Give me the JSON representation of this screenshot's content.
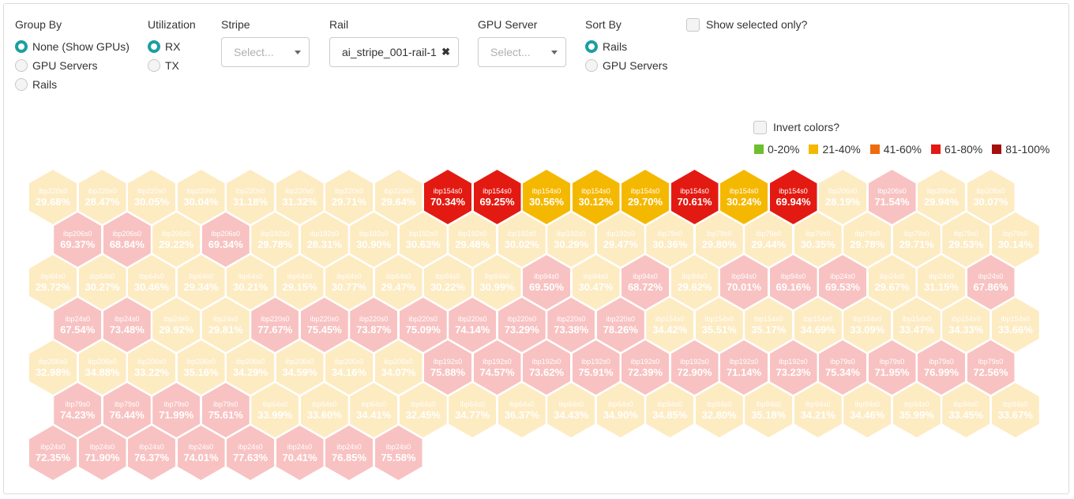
{
  "group_by": {
    "label": "Group By",
    "options": [
      {
        "label": "None (Show GPUs)",
        "selected": true
      },
      {
        "label": "GPU Servers",
        "selected": false
      },
      {
        "label": "Rails",
        "selected": false
      }
    ]
  },
  "utilization": {
    "label": "Utilization",
    "options": [
      {
        "label": "RX",
        "selected": true
      },
      {
        "label": "TX",
        "selected": false
      }
    ]
  },
  "stripe": {
    "label": "Stripe",
    "placeholder": "Select..."
  },
  "rail": {
    "label": "Rail",
    "value": "ai_stripe_001-rail-1",
    "clear_icon": "close-icon"
  },
  "gpu_server": {
    "label": "GPU Server",
    "placeholder": "Select..."
  },
  "sort_by": {
    "label": "Sort By",
    "options": [
      {
        "label": "Rails",
        "selected": true
      },
      {
        "label": "GPU Servers",
        "selected": false
      }
    ]
  },
  "show_selected_only": {
    "label": "Show selected only?",
    "checked": false
  },
  "invert_colors": {
    "label": "Invert colors?",
    "checked": false
  },
  "legend": [
    {
      "label": "0-20%",
      "color": "#6dbf2f"
    },
    {
      "label": "21-40%",
      "color": "#f5b800"
    },
    {
      "label": "41-60%",
      "color": "#ee6c0c"
    },
    {
      "label": "61-80%",
      "color": "#e31a12"
    },
    {
      "label": "81-100%",
      "color": "#a50f0f"
    }
  ],
  "colors": {
    "dim_low": "#fdebc2",
    "dim_high": "#f8c2c2",
    "hi_low": "#f5b800",
    "hi_high": "#e31a12"
  },
  "rows": [
    [
      {
        "name": "ibp220s0",
        "value": "29.68%",
        "hl": false
      },
      {
        "name": "ibp220s0",
        "value": "28.47%",
        "hl": false
      },
      {
        "name": "ibp220s0",
        "value": "30.05%",
        "hl": false
      },
      {
        "name": "ibp220s0",
        "value": "30.04%",
        "hl": false
      },
      {
        "name": "ibp220s0",
        "value": "31.18%",
        "hl": false
      },
      {
        "name": "ibp220s0",
        "value": "31.32%",
        "hl": false
      },
      {
        "name": "ibp220s0",
        "value": "29.71%",
        "hl": false
      },
      {
        "name": "ibp220s0",
        "value": "29.64%",
        "hl": false
      },
      {
        "name": "ibp154s0",
        "value": "70.34%",
        "hl": true
      },
      {
        "name": "ibp154s0",
        "value": "69.25%",
        "hl": true
      },
      {
        "name": "ibp154s0",
        "value": "30.56%",
        "hl": true
      },
      {
        "name": "ibp154s0",
        "value": "30.12%",
        "hl": true
      },
      {
        "name": "ibp154s0",
        "value": "29.70%",
        "hl": true
      },
      {
        "name": "ibp154s0",
        "value": "70.61%",
        "hl": true
      },
      {
        "name": "ibp154s0",
        "value": "30.24%",
        "hl": true
      },
      {
        "name": "ibp154s0",
        "value": "69.94%",
        "hl": true
      },
      {
        "name": "ibp206s0",
        "value": "28.19%",
        "hl": false
      },
      {
        "name": "ibp206s0",
        "value": "71.54%",
        "hl": false
      },
      {
        "name": "ibp206s0",
        "value": "29.94%",
        "hl": false
      },
      {
        "name": "ibp206s0",
        "value": "30.07%",
        "hl": false
      }
    ],
    [
      {
        "name": "ibp206s0",
        "value": "69.37%",
        "hl": false
      },
      {
        "name": "ibp206s0",
        "value": "68.84%",
        "hl": false
      },
      {
        "name": "ibp206s0",
        "value": "29.22%",
        "hl": false
      },
      {
        "name": "ibp206s0",
        "value": "69.34%",
        "hl": false
      },
      {
        "name": "ibp192s0",
        "value": "29.78%",
        "hl": false
      },
      {
        "name": "ibp192s0",
        "value": "28.31%",
        "hl": false
      },
      {
        "name": "ibp192s0",
        "value": "30.90%",
        "hl": false
      },
      {
        "name": "ibp192s0",
        "value": "30.63%",
        "hl": false
      },
      {
        "name": "ibp192s0",
        "value": "29.48%",
        "hl": false
      },
      {
        "name": "ibp192s0",
        "value": "30.02%",
        "hl": false
      },
      {
        "name": "ibp192s0",
        "value": "30.29%",
        "hl": false
      },
      {
        "name": "ibp192s0",
        "value": "29.47%",
        "hl": false
      },
      {
        "name": "ibp79s0",
        "value": "30.36%",
        "hl": false
      },
      {
        "name": "ibp79s0",
        "value": "29.80%",
        "hl": false
      },
      {
        "name": "ibp79s0",
        "value": "29.44%",
        "hl": false
      },
      {
        "name": "ibp79s0",
        "value": "30.35%",
        "hl": false
      },
      {
        "name": "ibp79s0",
        "value": "29.78%",
        "hl": false
      },
      {
        "name": "ibp79s0",
        "value": "29.71%",
        "hl": false
      },
      {
        "name": "ibp79s0",
        "value": "29.53%",
        "hl": false
      },
      {
        "name": "ibp79s0",
        "value": "30.14%",
        "hl": false
      }
    ],
    [
      {
        "name": "ibp64s0",
        "value": "29.72%",
        "hl": false
      },
      {
        "name": "ibp64s0",
        "value": "30.27%",
        "hl": false
      },
      {
        "name": "ibp64s0",
        "value": "30.46%",
        "hl": false
      },
      {
        "name": "ibp64s0",
        "value": "29.34%",
        "hl": false
      },
      {
        "name": "ibp64s0",
        "value": "30.21%",
        "hl": false
      },
      {
        "name": "ibp64s0",
        "value": "29.15%",
        "hl": false
      },
      {
        "name": "ibp64s0",
        "value": "30.77%",
        "hl": false
      },
      {
        "name": "ibp64s0",
        "value": "29.47%",
        "hl": false
      },
      {
        "name": "ibp94s0",
        "value": "30.22%",
        "hl": false
      },
      {
        "name": "ibp94s0",
        "value": "30.99%",
        "hl": false
      },
      {
        "name": "ibp94s0",
        "value": "69.50%",
        "hl": false
      },
      {
        "name": "ibp94s0",
        "value": "30.47%",
        "hl": false
      },
      {
        "name": "ibp94s0",
        "value": "68.72%",
        "hl": false
      },
      {
        "name": "ibp94s0",
        "value": "29.62%",
        "hl": false
      },
      {
        "name": "ibp94s0",
        "value": "70.01%",
        "hl": false
      },
      {
        "name": "ibp94s0",
        "value": "69.16%",
        "hl": false
      },
      {
        "name": "ibp24s0",
        "value": "69.53%",
        "hl": false
      },
      {
        "name": "ibp24s0",
        "value": "29.67%",
        "hl": false
      },
      {
        "name": "ibp24s0",
        "value": "31.15%",
        "hl": false
      },
      {
        "name": "ibp24s0",
        "value": "67.86%",
        "hl": false
      }
    ],
    [
      {
        "name": "ibp24s0",
        "value": "67.54%",
        "hl": false
      },
      {
        "name": "ibp24s0",
        "value": "73.48%",
        "hl": false
      },
      {
        "name": "ibp24s0",
        "value": "29.92%",
        "hl": false
      },
      {
        "name": "ibp24s0",
        "value": "29.81%",
        "hl": false
      },
      {
        "name": "ibp220s0",
        "value": "77.67%",
        "hl": false
      },
      {
        "name": "ibp220s0",
        "value": "75.45%",
        "hl": false
      },
      {
        "name": "ibp220s0",
        "value": "73.87%",
        "hl": false
      },
      {
        "name": "ibp220s0",
        "value": "75.09%",
        "hl": false
      },
      {
        "name": "ibp220s0",
        "value": "74.14%",
        "hl": false
      },
      {
        "name": "ibp220s0",
        "value": "73.29%",
        "hl": false
      },
      {
        "name": "ibp220s0",
        "value": "73.38%",
        "hl": false
      },
      {
        "name": "ibp220s0",
        "value": "78.26%",
        "hl": false
      },
      {
        "name": "ibp154s0",
        "value": "34.42%",
        "hl": false
      },
      {
        "name": "ibp154s0",
        "value": "35.51%",
        "hl": false
      },
      {
        "name": "ibp154s0",
        "value": "35.17%",
        "hl": false
      },
      {
        "name": "ibp154s0",
        "value": "34.69%",
        "hl": false
      },
      {
        "name": "ibp154s0",
        "value": "33.09%",
        "hl": false
      },
      {
        "name": "ibp154s0",
        "value": "33.47%",
        "hl": false
      },
      {
        "name": "ibp154s0",
        "value": "34.33%",
        "hl": false
      },
      {
        "name": "ibp154s0",
        "value": "33.66%",
        "hl": false
      }
    ],
    [
      {
        "name": "ibp206s0",
        "value": "32.98%",
        "hl": false
      },
      {
        "name": "ibp206s0",
        "value": "34.88%",
        "hl": false
      },
      {
        "name": "ibp206s0",
        "value": "33.22%",
        "hl": false
      },
      {
        "name": "ibp206s0",
        "value": "35.16%",
        "hl": false
      },
      {
        "name": "ibp206s0",
        "value": "34.29%",
        "hl": false
      },
      {
        "name": "ibp206s0",
        "value": "34.59%",
        "hl": false
      },
      {
        "name": "ibp206s0",
        "value": "34.16%",
        "hl": false
      },
      {
        "name": "ibp206s0",
        "value": "34.07%",
        "hl": false
      },
      {
        "name": "ibp192s0",
        "value": "75.88%",
        "hl": false
      },
      {
        "name": "ibp192s0",
        "value": "74.57%",
        "hl": false
      },
      {
        "name": "ibp192s0",
        "value": "73.62%",
        "hl": false
      },
      {
        "name": "ibp192s0",
        "value": "75.91%",
        "hl": false
      },
      {
        "name": "ibp192s0",
        "value": "72.39%",
        "hl": false
      },
      {
        "name": "ibp192s0",
        "value": "72.90%",
        "hl": false
      },
      {
        "name": "ibp192s0",
        "value": "71.14%",
        "hl": false
      },
      {
        "name": "ibp192s0",
        "value": "73.23%",
        "hl": false
      },
      {
        "name": "ibp79s0",
        "value": "75.34%",
        "hl": false
      },
      {
        "name": "ibp79s0",
        "value": "71.95%",
        "hl": false
      },
      {
        "name": "ibp79s0",
        "value": "76.99%",
        "hl": false
      },
      {
        "name": "ibp79s0",
        "value": "72.56%",
        "hl": false
      }
    ],
    [
      {
        "name": "ibp79s0",
        "value": "74.23%",
        "hl": false
      },
      {
        "name": "ibp79s0",
        "value": "76.44%",
        "hl": false
      },
      {
        "name": "ibp79s0",
        "value": "71.99%",
        "hl": false
      },
      {
        "name": "ibp79s0",
        "value": "75.61%",
        "hl": false
      },
      {
        "name": "ibp64s0",
        "value": "33.99%",
        "hl": false
      },
      {
        "name": "ibp64s0",
        "value": "33.60%",
        "hl": false
      },
      {
        "name": "ibp64s0",
        "value": "34.41%",
        "hl": false
      },
      {
        "name": "ibp64s0",
        "value": "32.45%",
        "hl": false
      },
      {
        "name": "ibp64s0",
        "value": "34.77%",
        "hl": false
      },
      {
        "name": "ibp64s0",
        "value": "36.37%",
        "hl": false
      },
      {
        "name": "ibp64s0",
        "value": "34.43%",
        "hl": false
      },
      {
        "name": "ibp64s0",
        "value": "34.90%",
        "hl": false
      },
      {
        "name": "ibp94s0",
        "value": "34.85%",
        "hl": false
      },
      {
        "name": "ibp94s0",
        "value": "32.80%",
        "hl": false
      },
      {
        "name": "ibp94s0",
        "value": "35.18%",
        "hl": false
      },
      {
        "name": "ibp94s0",
        "value": "34.21%",
        "hl": false
      },
      {
        "name": "ibp94s0",
        "value": "34.46%",
        "hl": false
      },
      {
        "name": "ibp94s0",
        "value": "35.99%",
        "hl": false
      },
      {
        "name": "ibp94s0",
        "value": "33.45%",
        "hl": false
      },
      {
        "name": "ibp94s0",
        "value": "33.67%",
        "hl": false
      }
    ],
    [
      {
        "name": "ibp24s0",
        "value": "72.35%",
        "hl": false
      },
      {
        "name": "ibp24s0",
        "value": "71.90%",
        "hl": false
      },
      {
        "name": "ibp24s0",
        "value": "76.37%",
        "hl": false
      },
      {
        "name": "ibp24s0",
        "value": "74.01%",
        "hl": false
      },
      {
        "name": "ibp24s0",
        "value": "77.63%",
        "hl": false
      },
      {
        "name": "ibp24s0",
        "value": "70.41%",
        "hl": false
      },
      {
        "name": "ibp24s0",
        "value": "76.85%",
        "hl": false
      },
      {
        "name": "ibp24s0",
        "value": "75.58%",
        "hl": false
      }
    ]
  ]
}
